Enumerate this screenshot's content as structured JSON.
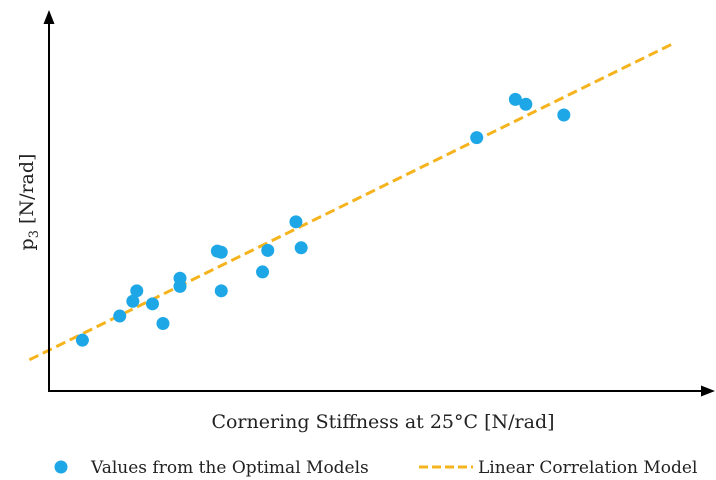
{
  "chart_data": {
    "type": "scatter",
    "xlabel": "Cornering Stiffness at 25°C [N/rad]",
    "ylabel_main": "p",
    "ylabel_sub": "3",
    "ylabel_unit": " [N/rad]",
    "xlim": [
      0,
      100
    ],
    "ylim": [
      0,
      100
    ],
    "ticks_shown": false,
    "grid": false,
    "legend_position": "bottom",
    "series": [
      {
        "name": "Values from the Optimal Models",
        "kind": "points",
        "color": "#1ea7e6",
        "points": [
          {
            "x": 5.1,
            "y": 13.7
          },
          {
            "x": 10.8,
            "y": 20.2
          },
          {
            "x": 12.8,
            "y": 24.2
          },
          {
            "x": 13.4,
            "y": 27.0
          },
          {
            "x": 15.8,
            "y": 23.5
          },
          {
            "x": 17.4,
            "y": 18.2
          },
          {
            "x": 20.0,
            "y": 28.2
          },
          {
            "x": 20.0,
            "y": 30.4
          },
          {
            "x": 25.7,
            "y": 37.7
          },
          {
            "x": 26.3,
            "y": 37.4
          },
          {
            "x": 26.3,
            "y": 27.0
          },
          {
            "x": 32.6,
            "y": 32.1
          },
          {
            "x": 33.4,
            "y": 37.9
          },
          {
            "x": 37.7,
            "y": 45.6
          },
          {
            "x": 38.5,
            "y": 38.6
          },
          {
            "x": 65.3,
            "y": 68.3
          },
          {
            "x": 71.2,
            "y": 78.6
          },
          {
            "x": 72.8,
            "y": 77.3
          },
          {
            "x": 78.6,
            "y": 74.4
          }
        ]
      },
      {
        "name": "Linear Correlation Model",
        "kind": "line",
        "dash": true,
        "color": "#f5b41e",
        "points": [
          {
            "x": -3,
            "y": 8.4
          },
          {
            "x": 95,
            "y": 93.4
          }
        ]
      }
    ]
  }
}
